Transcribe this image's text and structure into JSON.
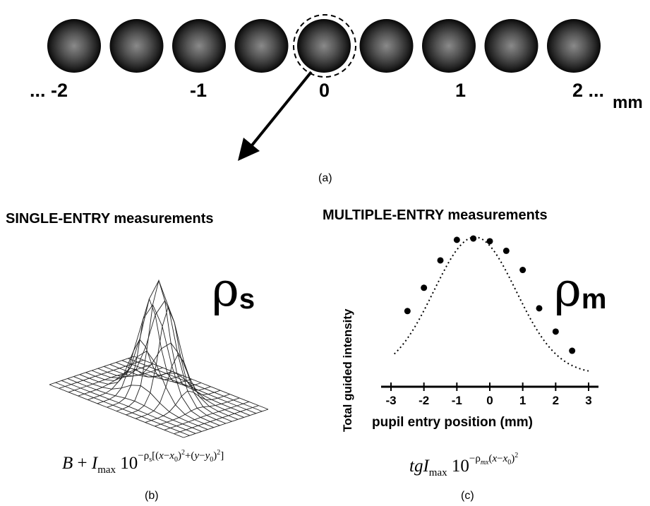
{
  "figure": {
    "panel_a": {
      "position_labels": [
        "... -2",
        "-1",
        "0",
        "1",
        "2 ...",
        "mm"
      ],
      "panel_label": "(a)"
    },
    "panel_b": {
      "title": "SINGLE-ENTRY measurements",
      "symbol": "ρ",
      "symbol_sub": "s",
      "formula": "B + I_max 10^(−ρs[(x−x0)^2+(y−y0)^2])",
      "panel_label": "(b)"
    },
    "panel_c": {
      "title": "MULTIPLE-ENTRY measurements",
      "symbol": "ρ",
      "symbol_sub": "m",
      "formula": "tgI_max 10^(−ρmx(x−x0)^2)",
      "panel_label": "(c)"
    }
  },
  "chart_data": {
    "type": "scatter",
    "title": "",
    "xlabel": "pupil entry position (mm)",
    "ylabel": "Total guided intensity",
    "xlim": [
      -3.3,
      3.3
    ],
    "x_ticks": [
      "-3",
      "-2",
      "-1",
      "0",
      "1",
      "2",
      "3"
    ],
    "series": [
      {
        "x": [
          -2.5,
          -2.0,
          -1.5,
          -1.0,
          -0.5,
          0.0,
          0.5,
          1.0,
          1.5,
          2.0,
          2.5
        ],
        "y": [
          0.46,
          0.63,
          0.83,
          0.98,
          0.99,
          0.97,
          0.9,
          0.76,
          0.48,
          0.31,
          0.17
        ]
      }
    ],
    "fit_curve": "dotted"
  }
}
